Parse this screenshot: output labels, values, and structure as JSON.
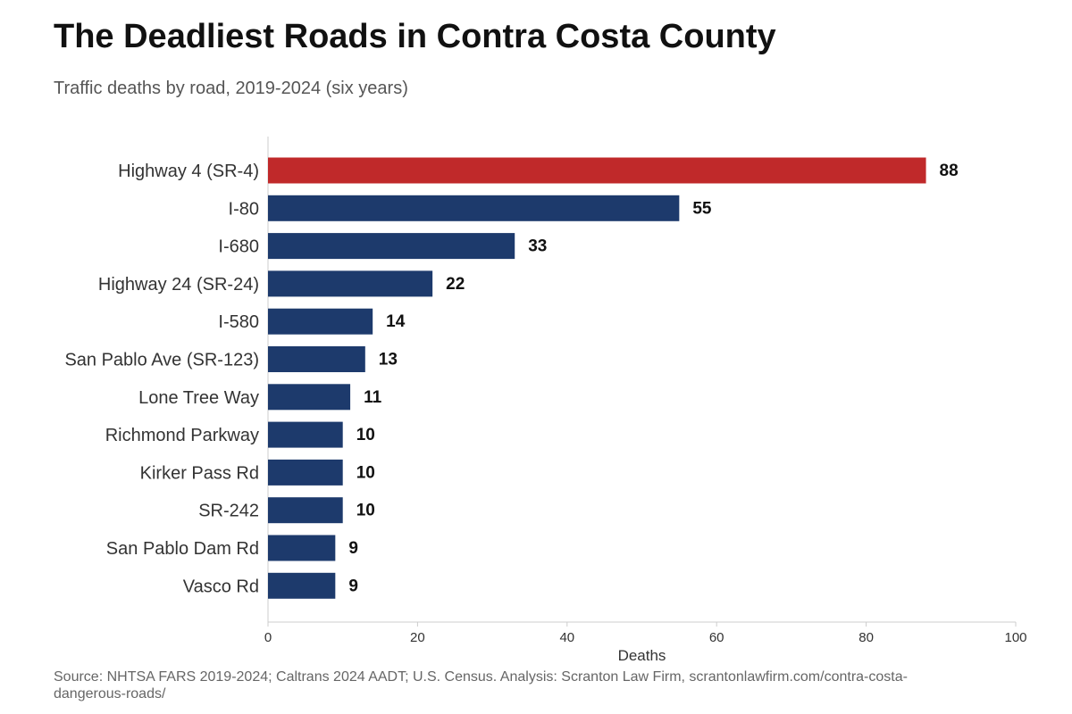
{
  "chart_data": {
    "type": "bar",
    "orientation": "horizontal",
    "title": "The Deadliest Roads in Contra Costa County",
    "subtitle": "Traffic deaths by road, 2019-2024 (six years)",
    "xlabel": "Deaths",
    "ylabel": "",
    "xlim": [
      0,
      100
    ],
    "xticks": [
      0,
      20,
      40,
      60,
      80,
      100
    ],
    "grid": false,
    "categories": [
      "Highway 4 (SR-4)",
      "I-80",
      "I-680",
      "Highway 24 (SR-24)",
      "I-580",
      "San Pablo Ave (SR-123)",
      "Lone Tree Way",
      "Richmond Parkway",
      "Kirker Pass Rd",
      "SR-242",
      "San Pablo Dam Rd",
      "Vasco Rd"
    ],
    "values": [
      88,
      55,
      33,
      22,
      14,
      13,
      11,
      10,
      10,
      10,
      9,
      9
    ],
    "highlight_index": 0,
    "colors": {
      "highlight": "#c0292a",
      "default": "#1d3a6c",
      "axis": "#cccccc",
      "category_label": "#333333",
      "value_label": "#111111",
      "tick_label": "#333333"
    },
    "source": "Source: NHTSA FARS 2019-2024; Caltrans 2024 AADT; U.S. Census. Analysis: Scranton Law Firm, scrantonlawfirm.com/contra-costa-dangerous-roads/"
  }
}
